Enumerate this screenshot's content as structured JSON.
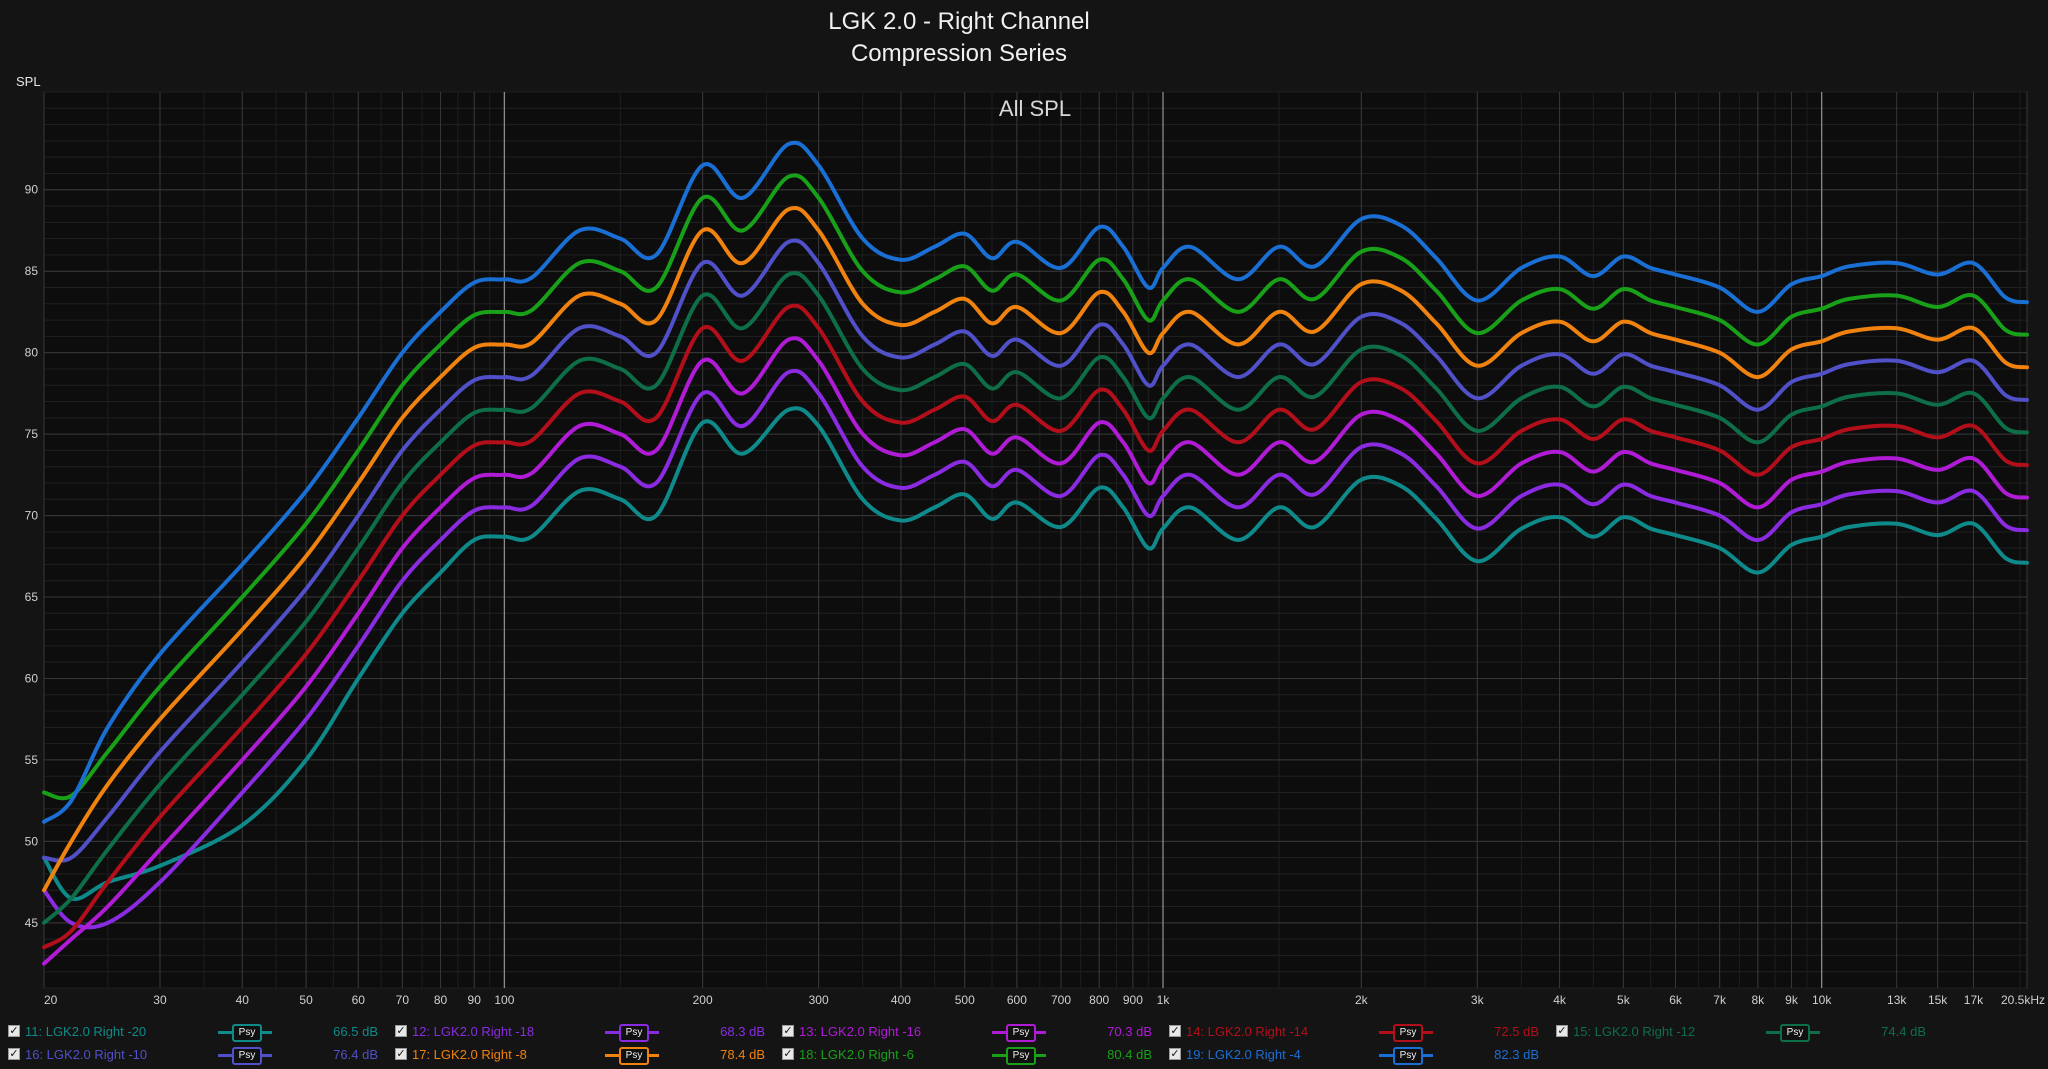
{
  "title": "LGK 2.0 - Right Channel",
  "subtitle": "Compression Series",
  "chart_data": {
    "type": "line",
    "title": "All SPL",
    "ylabel": "SPL",
    "xlabel": "",
    "x_scale": "log",
    "xlim": [
      20,
      20500
    ],
    "ylim": [
      41,
      96
    ],
    "x_ticks": [
      {
        "v": 20,
        "label": "20"
      },
      {
        "v": 30,
        "label": "30"
      },
      {
        "v": 40,
        "label": "40"
      },
      {
        "v": 50,
        "label": "50"
      },
      {
        "v": 60,
        "label": "60"
      },
      {
        "v": 70,
        "label": "70"
      },
      {
        "v": 80,
        "label": "80"
      },
      {
        "v": 90,
        "label": "90"
      },
      {
        "v": 100,
        "label": "100"
      },
      {
        "v": 200,
        "label": "200"
      },
      {
        "v": 300,
        "label": "300"
      },
      {
        "v": 400,
        "label": "400"
      },
      {
        "v": 500,
        "label": "500"
      },
      {
        "v": 600,
        "label": "600"
      },
      {
        "v": 700,
        "label": "700"
      },
      {
        "v": 800,
        "label": "800"
      },
      {
        "v": 900,
        "label": "900"
      },
      {
        "v": 1000,
        "label": "1k"
      },
      {
        "v": 2000,
        "label": "2k"
      },
      {
        "v": 3000,
        "label": "3k"
      },
      {
        "v": 4000,
        "label": "4k"
      },
      {
        "v": 5000,
        "label": "5k"
      },
      {
        "v": 6000,
        "label": "6k"
      },
      {
        "v": 7000,
        "label": "7k"
      },
      {
        "v": 8000,
        "label": "8k"
      },
      {
        "v": 9000,
        "label": "9k"
      },
      {
        "v": 10000,
        "label": "10k"
      },
      {
        "v": 13000,
        "label": "13k"
      },
      {
        "v": 15000,
        "label": "15k"
      },
      {
        "v": 17000,
        "label": "17k"
      },
      {
        "v": 20500,
        "label": "20.5kHz"
      }
    ],
    "y_ticks": [
      45,
      50,
      55,
      60,
      65,
      70,
      75,
      80,
      85,
      90
    ],
    "grid": true,
    "legend_position": "bottom",
    "x": [
      20,
      22,
      25,
      30,
      40,
      50,
      60,
      70,
      80,
      90,
      100,
      110,
      130,
      150,
      170,
      200,
      230,
      270,
      300,
      350,
      400,
      450,
      500,
      550,
      600,
      700,
      800,
      870,
      950,
      1000,
      1100,
      1300,
      1500,
      1700,
      2000,
      2300,
      2600,
      3000,
      3500,
      4000,
      4500,
      5000,
      5500,
      6000,
      7000,
      8000,
      9000,
      10000,
      11000,
      13000,
      15000,
      17000,
      19000,
      20500
    ],
    "series": [
      {
        "name": "11: LGK2.0 Right -20",
        "color": "#0f8a8a",
        "value_label": "66.5 dB",
        "values": [
          49.0,
          46.5,
          47.5,
          48.5,
          51.0,
          55.0,
          60.0,
          64.0,
          66.5,
          68.5,
          68.7,
          68.7,
          71.5,
          71.0,
          70.0,
          75.7,
          73.8,
          76.5,
          75.5,
          71.0,
          69.7,
          70.5,
          71.3,
          69.8,
          70.8,
          69.3,
          71.7,
          70.5,
          68.0,
          69.2,
          70.5,
          68.5,
          70.5,
          69.3,
          72.2,
          71.8,
          69.8,
          67.2,
          69.2,
          69.9,
          68.7,
          69.9,
          69.2,
          68.8,
          68.0,
          66.5,
          68.2,
          68.7,
          69.3,
          69.5,
          68.8,
          69.5,
          67.4,
          67.1
        ]
      },
      {
        "name": "12: LGK2.0 Right -18",
        "color": "#8a2be2",
        "value_label": "68.3 dB",
        "values": [
          47.0,
          45.0,
          45.0,
          47.5,
          53.0,
          57.5,
          62.0,
          66.0,
          68.5,
          70.3,
          70.5,
          70.6,
          73.5,
          73.0,
          72.0,
          77.5,
          75.5,
          78.8,
          77.5,
          73.0,
          71.7,
          72.5,
          73.3,
          71.8,
          72.8,
          71.2,
          73.7,
          72.5,
          70.0,
          71.2,
          72.5,
          70.5,
          72.5,
          71.3,
          74.2,
          73.8,
          71.8,
          69.2,
          71.2,
          71.9,
          70.7,
          71.9,
          71.2,
          70.8,
          70.0,
          68.5,
          70.2,
          70.7,
          71.3,
          71.5,
          70.8,
          71.5,
          69.4,
          69.1
        ]
      },
      {
        "name": "13: LGK2.0 Right -16",
        "color": "#b01bd6",
        "value_label": "70.3 dB",
        "values": [
          42.5,
          44.0,
          46.0,
          49.5,
          55.0,
          59.5,
          64.0,
          68.0,
          70.5,
          72.3,
          72.5,
          72.6,
          75.5,
          75.0,
          74.0,
          79.5,
          77.5,
          80.8,
          79.5,
          75.0,
          73.7,
          74.5,
          75.3,
          73.8,
          74.8,
          73.2,
          75.7,
          74.5,
          72.0,
          73.2,
          74.5,
          72.5,
          74.5,
          73.3,
          76.2,
          75.8,
          73.8,
          71.2,
          73.2,
          73.9,
          72.7,
          73.9,
          73.2,
          72.8,
          72.0,
          70.5,
          72.2,
          72.7,
          73.3,
          73.5,
          72.8,
          73.5,
          71.4,
          71.1
        ]
      },
      {
        "name": "14: LGK2.0 Right -14",
        "color": "#b30f1a",
        "value_label": "72.5 dB",
        "values": [
          43.5,
          44.5,
          47.5,
          51.5,
          57.0,
          61.5,
          66.0,
          70.0,
          72.5,
          74.3,
          74.5,
          74.6,
          77.5,
          77.0,
          76.0,
          81.5,
          79.5,
          82.8,
          81.5,
          77.0,
          75.7,
          76.5,
          77.3,
          75.8,
          76.8,
          75.2,
          77.7,
          76.5,
          74.0,
          75.2,
          76.5,
          74.5,
          76.5,
          75.3,
          78.2,
          77.8,
          75.8,
          73.2,
          75.2,
          75.9,
          74.7,
          75.9,
          75.2,
          74.8,
          74.0,
          72.5,
          74.2,
          74.7,
          75.3,
          75.5,
          74.8,
          75.5,
          73.4,
          73.1
        ]
      },
      {
        "name": "15: LGK2.0 Right -12",
        "color": "#0d6e48",
        "value_label": "74.4 dB",
        "values": [
          45.0,
          46.5,
          49.5,
          53.5,
          59.0,
          63.5,
          68.0,
          72.0,
          74.5,
          76.3,
          76.5,
          76.6,
          79.5,
          79.0,
          78.0,
          83.5,
          81.5,
          84.8,
          83.5,
          79.0,
          77.7,
          78.5,
          79.3,
          77.8,
          78.8,
          77.2,
          79.7,
          78.5,
          76.0,
          77.2,
          78.5,
          76.5,
          78.5,
          77.3,
          80.2,
          79.8,
          77.8,
          75.2,
          77.2,
          77.9,
          76.7,
          77.9,
          77.2,
          76.8,
          76.0,
          74.5,
          76.2,
          76.7,
          77.3,
          77.5,
          76.8,
          77.5,
          75.4,
          75.1
        ]
      },
      {
        "name": "16: LGK2.0 Right -10",
        "color": "#5050c8",
        "value_label": "76.4 dB",
        "values": [
          49.0,
          49.0,
          51.5,
          55.5,
          61.0,
          65.5,
          70.0,
          74.0,
          76.5,
          78.3,
          78.5,
          78.6,
          81.5,
          81.0,
          80.0,
          85.5,
          83.5,
          86.8,
          85.5,
          81.0,
          79.7,
          80.5,
          81.3,
          79.8,
          80.8,
          79.2,
          81.7,
          80.5,
          78.0,
          79.2,
          80.5,
          78.5,
          80.5,
          79.3,
          82.2,
          81.8,
          79.8,
          77.2,
          79.2,
          79.9,
          78.7,
          79.9,
          79.2,
          78.8,
          78.0,
          76.5,
          78.2,
          78.7,
          79.3,
          79.5,
          78.8,
          79.5,
          77.4,
          77.1
        ]
      },
      {
        "name": "17: LGK2.0 Right -8",
        "color": "#f0820f",
        "value_label": "78.4 dB",
        "values": [
          47.0,
          50.0,
          53.5,
          57.5,
          63.0,
          67.5,
          72.0,
          76.0,
          78.5,
          80.3,
          80.5,
          80.6,
          83.5,
          83.0,
          82.0,
          87.5,
          85.5,
          88.8,
          87.5,
          83.0,
          81.7,
          82.5,
          83.3,
          81.8,
          82.8,
          81.2,
          83.7,
          82.5,
          80.0,
          81.2,
          82.5,
          80.5,
          82.5,
          81.3,
          84.2,
          83.8,
          81.8,
          79.2,
          81.2,
          81.9,
          80.7,
          81.9,
          81.2,
          80.8,
          80.0,
          78.5,
          80.2,
          80.7,
          81.3,
          81.5,
          80.8,
          81.5,
          79.4,
          79.1
        ]
      },
      {
        "name": "18: LGK2.0 Right -6",
        "color": "#18a018",
        "value_label": "80.4 dB",
        "values": [
          53.0,
          52.8,
          55.5,
          59.5,
          65.0,
          69.5,
          74.0,
          78.0,
          80.5,
          82.3,
          82.5,
          82.6,
          85.5,
          85.0,
          84.0,
          89.5,
          87.5,
          90.8,
          89.5,
          85.0,
          83.7,
          84.5,
          85.3,
          83.8,
          84.8,
          83.2,
          85.7,
          84.5,
          82.0,
          83.2,
          84.5,
          82.5,
          84.5,
          83.3,
          86.2,
          85.8,
          83.8,
          81.2,
          83.2,
          83.9,
          82.7,
          83.9,
          83.2,
          82.8,
          82.0,
          80.5,
          82.2,
          82.7,
          83.3,
          83.5,
          82.8,
          83.5,
          81.4,
          81.1
        ]
      },
      {
        "name": "19: LGK2.0 Right -4",
        "color": "#1a6fd4",
        "value_label": "82.3 dB",
        "values": [
          51.2,
          52.5,
          57.0,
          61.5,
          67.0,
          71.5,
          76.0,
          80.0,
          82.5,
          84.3,
          84.5,
          84.6,
          87.5,
          87.0,
          86.0,
          91.5,
          89.5,
          92.8,
          91.5,
          87.0,
          85.7,
          86.5,
          87.3,
          85.8,
          86.8,
          85.2,
          87.7,
          86.5,
          84.0,
          85.2,
          86.5,
          84.5,
          86.5,
          85.3,
          88.2,
          87.8,
          85.8,
          83.2,
          85.2,
          85.9,
          84.7,
          85.9,
          85.2,
          84.8,
          84.0,
          82.5,
          84.2,
          84.7,
          85.3,
          85.5,
          84.8,
          85.5,
          83.4,
          83.1
        ]
      }
    ],
    "legend_badge": "Psy"
  }
}
